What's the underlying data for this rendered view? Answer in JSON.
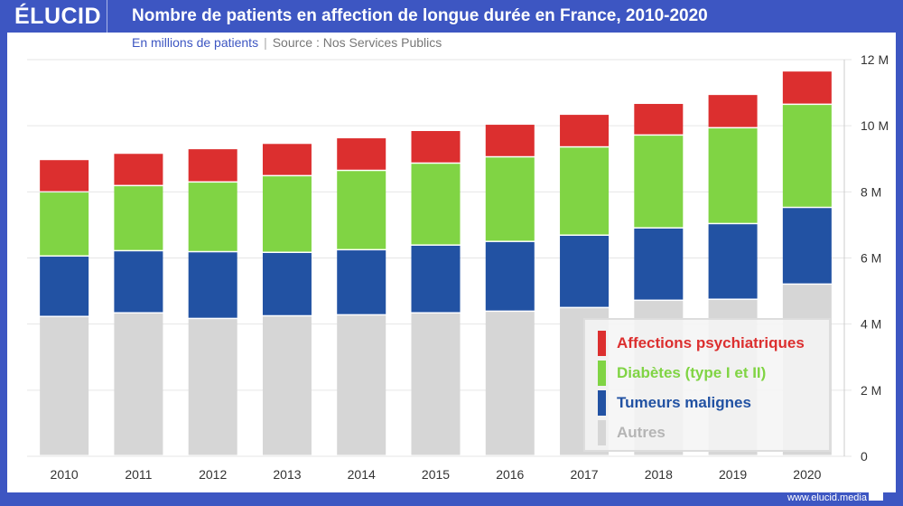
{
  "header": {
    "logo": "ÉLUCID",
    "title": "Nombre de patients en affection de longue durée en France, 2010-2020"
  },
  "subtitle": {
    "unit": "En millions de patients",
    "separator": "|",
    "source": "Source : Nos Services Publics"
  },
  "footer": {
    "url": "www.elucid.media"
  },
  "chart_data": {
    "type": "bar",
    "stacked": true,
    "title": "Nombre de patients en affection de longue durée en France, 2010-2020",
    "ylabel": "En millions de patients",
    "ylim": [
      0,
      12
    ],
    "yticks": [
      0,
      2,
      4,
      6,
      8,
      10,
      12
    ],
    "ytick_labels": [
      "0",
      "2 M",
      "4 M",
      "6 M",
      "8 M",
      "10 M",
      "12 M"
    ],
    "y_axis_side": "right",
    "grid": true,
    "legend_placement": "bottom-right",
    "categories": [
      "2010",
      "2011",
      "2012",
      "2013",
      "2014",
      "2015",
      "2016",
      "2017",
      "2018",
      "2019",
      "2020"
    ],
    "series": [
      {
        "name": "Autres",
        "color": "#d6d6d6",
        "values": [
          4.21,
          4.32,
          4.15,
          4.23,
          4.26,
          4.32,
          4.37,
          4.48,
          4.7,
          4.73,
          5.19
        ]
      },
      {
        "name": "Tumeurs malignes",
        "color": "#2252a3",
        "values": [
          1.83,
          1.88,
          2.02,
          1.92,
          1.97,
          2.05,
          2.11,
          2.19,
          2.19,
          2.29,
          2.32
        ]
      },
      {
        "name": "Diabètes (type I et II)",
        "color": "#80d444",
        "values": [
          1.94,
          1.97,
          2.11,
          2.32,
          2.4,
          2.48,
          2.56,
          2.67,
          2.81,
          2.9,
          3.12
        ]
      },
      {
        "name": "Affections psychiatriques",
        "color": "#dc2f2f",
        "values": [
          0.98,
          0.98,
          1.01,
          0.98,
          0.99,
          0.99,
          0.99,
          0.99,
          0.96,
          1.01,
          1.01
        ]
      }
    ],
    "legend_text_colors": {
      "Autres": "#b5b5b5",
      "Tumeurs malignes": "#2252a3",
      "Diabètes (type I et II)": "#80d444",
      "Affections psychiatriques": "#dc2f2f"
    }
  }
}
